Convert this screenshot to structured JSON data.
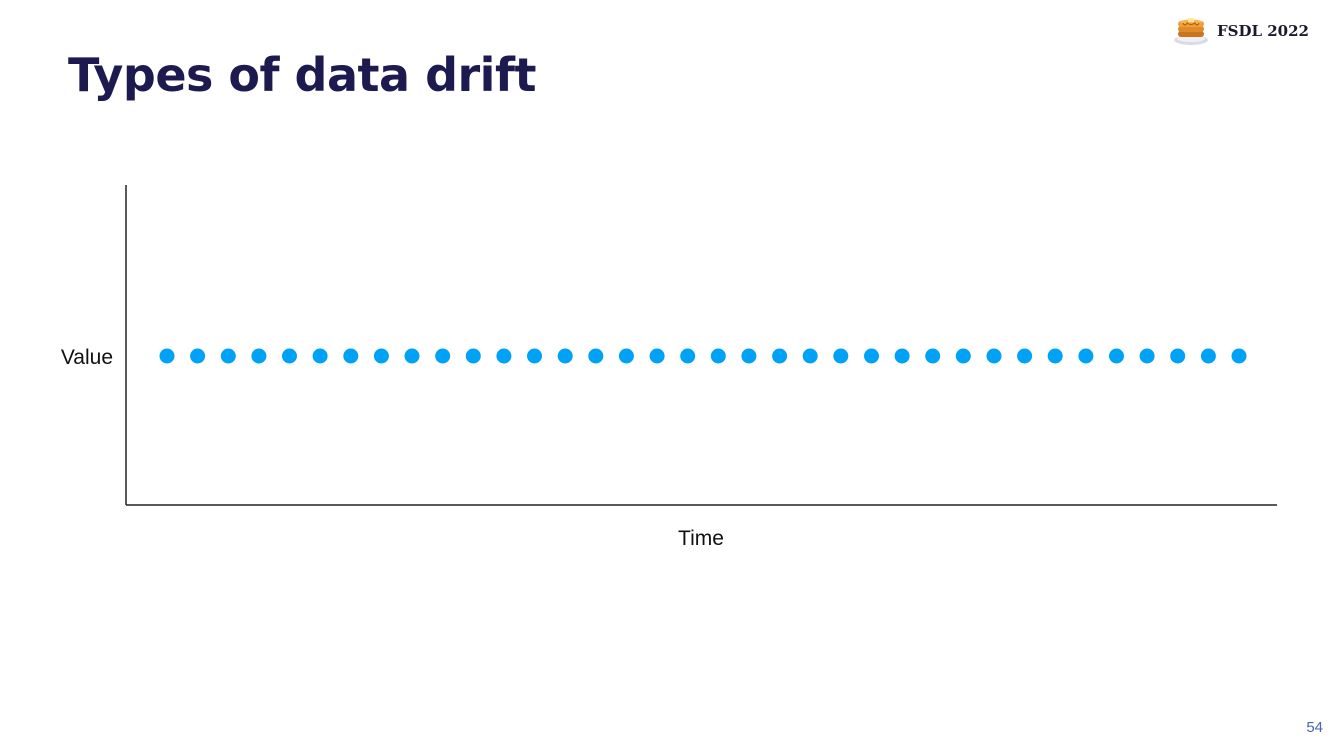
{
  "slide": {
    "title": "Types of data drift",
    "brand": "FSDL 2022",
    "page_number": "54",
    "colors": {
      "title": "#1c1a4f",
      "points": "#00a2f5",
      "axis": "#222222"
    },
    "icons": {
      "logo": "pancakes-icon"
    }
  },
  "chart_data": {
    "type": "scatter",
    "title": "",
    "xlabel": "Time",
    "ylabel": "Value",
    "grid": false,
    "x_ticks_shown": false,
    "y_ticks_shown": false,
    "series": [
      {
        "x": [
          1,
          2,
          3,
          4,
          5,
          6,
          7,
          8,
          9,
          10,
          11,
          12,
          13,
          14,
          15,
          16,
          17,
          18,
          19,
          20,
          21,
          22,
          23,
          24,
          25,
          26,
          27,
          28,
          29,
          30,
          31,
          32,
          33,
          34,
          35,
          36
        ],
        "y": [
          1,
          1,
          1,
          1,
          1,
          1,
          1,
          1,
          1,
          1,
          1,
          1,
          1,
          1,
          1,
          1,
          1,
          1,
          1,
          1,
          1,
          1,
          1,
          1,
          1,
          1,
          1,
          1,
          1,
          1,
          1,
          1,
          1,
          1,
          1,
          1
        ]
      }
    ]
  }
}
